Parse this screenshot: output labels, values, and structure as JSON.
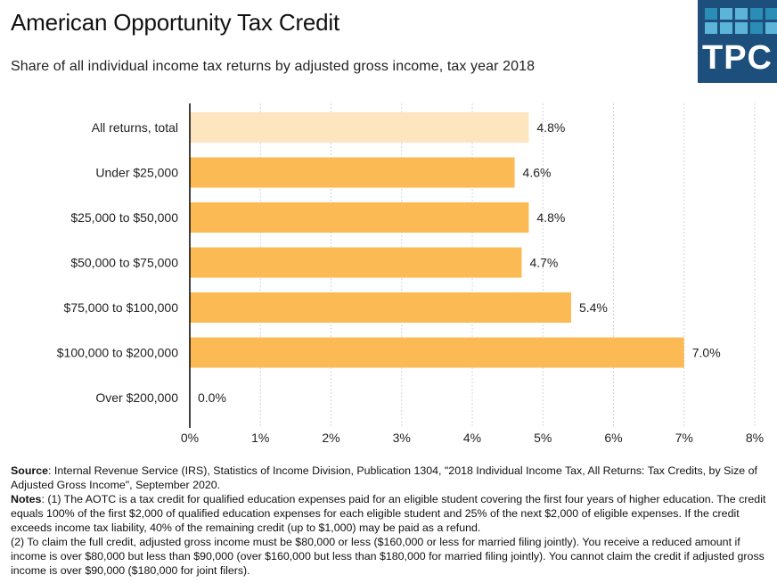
{
  "header": {
    "title": "American Opportunity Tax Credit",
    "subtitle": "Share of all individual income tax returns by adjusted gross income, tax year 2018"
  },
  "logo": {
    "text": "TPC",
    "background": "#1c4f7c",
    "cells": [
      "#2a8db5",
      "#5cb5d9",
      "#5cb5d9",
      "#2a8db5",
      "#2a8db5",
      "#5cb5d9",
      "#5cb5d9",
      "#5cb5d9",
      "#2a8db5",
      "#5cb5d9"
    ]
  },
  "chart_data": {
    "type": "bar",
    "orientation": "horizontal",
    "title": "American Opportunity Tax Credit",
    "subtitle": "Share of all individual income tax returns by adjusted gross income, tax year 2018",
    "categories": [
      "All returns, total",
      "Under $25,000",
      "$25,000 to $50,000",
      "$50,000 to $75,000",
      "$75,000 to $100,000",
      "$100,000 to $200,000",
      "Over $200,000"
    ],
    "values": [
      4.8,
      4.6,
      4.8,
      4.7,
      5.4,
      7.0,
      0.0
    ],
    "data_labels": [
      "4.8%",
      "4.6%",
      "4.8%",
      "4.7%",
      "5.4%",
      "7.0%",
      "0.0%"
    ],
    "colors": [
      "#fde5bf",
      "#fcba55",
      "#fcba55",
      "#fcba55",
      "#fcba55",
      "#fcba55",
      "#fcba55"
    ],
    "xlabel": "",
    "ylabel": "",
    "xlim": [
      0,
      8
    ],
    "xticks": [
      0,
      1,
      2,
      3,
      4,
      5,
      6,
      7,
      8
    ],
    "xtick_labels": [
      "0%",
      "1%",
      "2%",
      "3%",
      "4%",
      "5%",
      "6%",
      "7%",
      "8%"
    ],
    "grid": "vertical dotted",
    "legend": "none"
  },
  "footer": {
    "source_label": "Source",
    "source_text": ": Internal Revenue Service (IRS), Statistics of Income Division, Publication 1304, \"2018 Individual Income Tax, All Returns: Tax Credits, by Size of Adjusted Gross Income\", September 2020.",
    "notes_label": "Notes",
    "notes_1": ": (1) The AOTC is a tax credit for qualified education expenses paid for an eligible student covering the first four years of higher education. The credit equals 100% of the first $2,000 of qualified education expenses for each eligible student and 25% of the next $2,000 of eligible expenses. If the credit exceeds income tax liability, 40% of the remaining credit (up to $1,000) may be paid as a refund.",
    "notes_2": "(2) To claim the full credit, adjusted gross income must be $80,000 or less ($160,000 or less for married filing jointly). You receive a reduced amount if income is over $80,000 but less than $90,000 (over $160,000 but less than $180,000 for married filing jointly). You cannot claim the credit if adjusted gross income is over $90,000 ($180,000 for joint filers)."
  }
}
